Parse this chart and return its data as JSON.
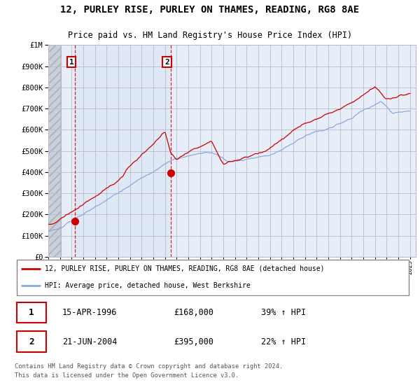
{
  "title": "12, PURLEY RISE, PURLEY ON THAMES, READING, RG8 8AE",
  "subtitle": "Price paid vs. HM Land Registry's House Price Index (HPI)",
  "ylim": [
    0,
    1000000
  ],
  "yticks": [
    0,
    100000,
    200000,
    300000,
    400000,
    500000,
    600000,
    700000,
    800000,
    900000,
    1000000
  ],
  "ytick_labels": [
    "£0",
    "£100K",
    "£200K",
    "£300K",
    "£400K",
    "£500K",
    "£600K",
    "£700K",
    "£800K",
    "£900K",
    "£1M"
  ],
  "xlim_start": 1994.0,
  "xlim_end": 2025.5,
  "house_color": "#cc0000",
  "hpi_color": "#88aadd",
  "annotation_box_color": "#cc0000",
  "purchase1_x": 1996.29,
  "purchase1_y": 168000,
  "purchase1_label": "1",
  "purchase1_date": "15-APR-1996",
  "purchase1_price": "£168,000",
  "purchase1_hpi": "39% ↑ HPI",
  "purchase2_x": 2004.47,
  "purchase2_y": 395000,
  "purchase2_label": "2",
  "purchase2_date": "21-JUN-2004",
  "purchase2_price": "£395,000",
  "purchase2_hpi": "22% ↑ HPI",
  "legend_line1": "12, PURLEY RISE, PURLEY ON THAMES, READING, RG8 8AE (detached house)",
  "legend_line2": "HPI: Average price, detached house, West Berkshire",
  "footer": "Contains HM Land Registry data © Crown copyright and database right 2024.\nThis data is licensed under the Open Government Licence v3.0.",
  "background_color": "#ffffff",
  "plot_bg_color": "#e8eef8",
  "shaded_region_color": "#dce6f5",
  "hatched_region_color": "#c8d0dc"
}
